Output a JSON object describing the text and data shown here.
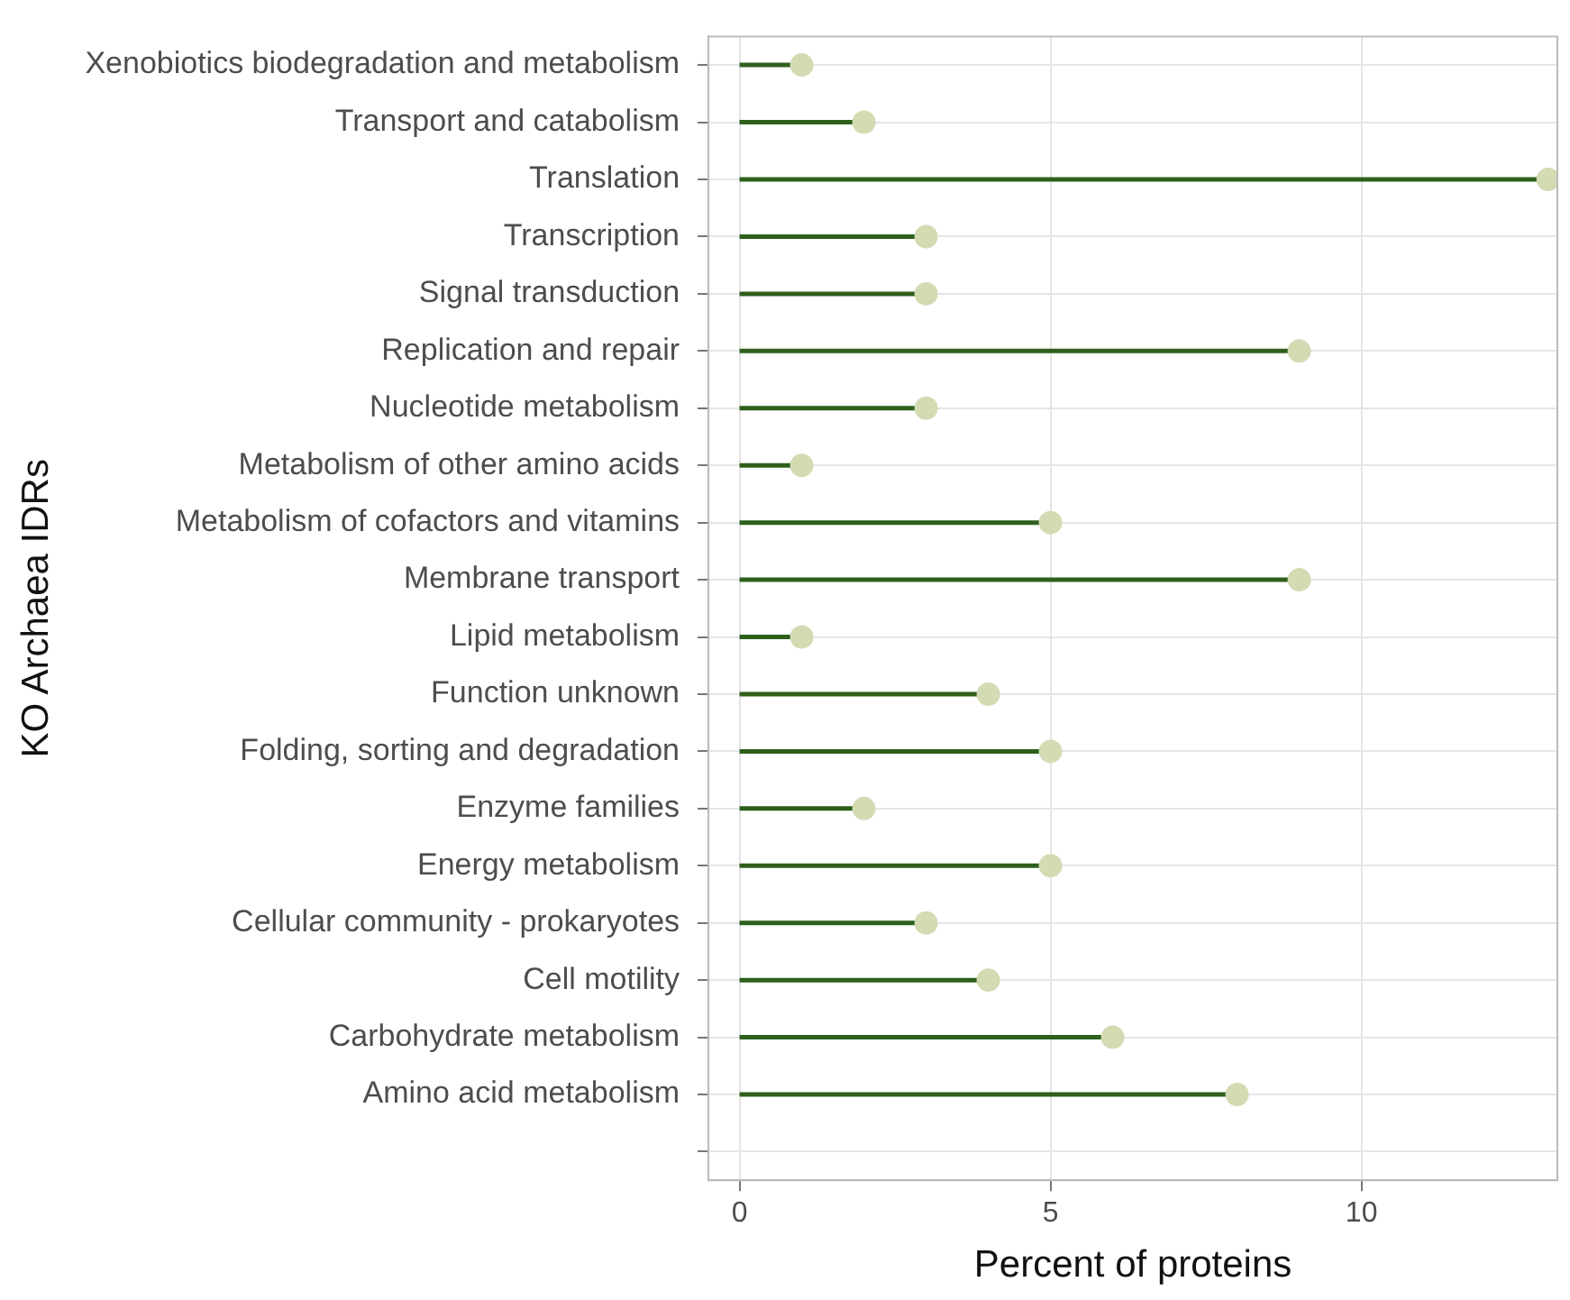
{
  "chart_data": {
    "type": "lollipop",
    "orientation": "horizontal",
    "xlabel": "Percent of proteins",
    "ylabel": "KO Archaea IDRs",
    "categories": [
      "Xenobiotics biodegradation and metabolism",
      "Transport and catabolism",
      "Translation",
      "Transcription",
      "Signal transduction",
      "Replication and repair",
      "Nucleotide metabolism",
      "Metabolism of other amino acids",
      "Metabolism of cofactors and vitamins",
      "Membrane transport",
      "Lipid metabolism",
      "Function unknown",
      "Folding, sorting and degradation",
      "Enzyme families",
      "Energy metabolism",
      "Cellular community - prokaryotes",
      "Cell motility",
      "Carbohydrate metabolism",
      "Amino acid metabolism",
      null
    ],
    "values": [
      1,
      2,
      13,
      3,
      3,
      9,
      3,
      1,
      5,
      9,
      1,
      4,
      5,
      2,
      5,
      3,
      4,
      6,
      8,
      null
    ],
    "color": "#d3dbb3",
    "marker": "circle",
    "xlim": [
      -0.5,
      13.15
    ],
    "xticks": [
      0,
      5,
      10
    ],
    "grid": true,
    "legend": false
  }
}
